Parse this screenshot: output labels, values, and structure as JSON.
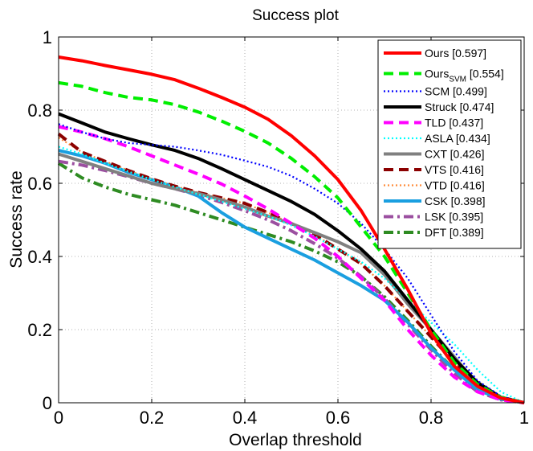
{
  "chart_data": {
    "type": "line",
    "title": "Success plot",
    "xlabel": "Overlap threshold",
    "ylabel": "Success rate",
    "xlim": [
      0,
      1
    ],
    "ylim": [
      0,
      1
    ],
    "grid": true,
    "legend_position": "top-right",
    "x_ticks": [
      "0",
      "0.2",
      "0.4",
      "0.6",
      "0.8",
      "1"
    ],
    "y_ticks": [
      "0",
      "0.2",
      "0.4",
      "0.6",
      "0.8",
      "1"
    ],
    "x": [
      0,
      0.05,
      0.1,
      0.15,
      0.2,
      0.25,
      0.3,
      0.35,
      0.4,
      0.45,
      0.5,
      0.55,
      0.6,
      0.65,
      0.7,
      0.75,
      0.8,
      0.85,
      0.9,
      0.95,
      1.0
    ],
    "series": [
      {
        "name": "Ours",
        "subscript": "",
        "score": "[0.597]",
        "color": "#ff0000",
        "dash": "solid",
        "values": [
          0.945,
          0.935,
          0.922,
          0.91,
          0.898,
          0.883,
          0.86,
          0.835,
          0.808,
          0.775,
          0.73,
          0.675,
          0.61,
          0.525,
          0.42,
          0.31,
          0.19,
          0.1,
          0.045,
          0.013,
          0.0
        ]
      },
      {
        "name": "Ours",
        "subscript": "SVM",
        "score": "[0.554]",
        "color": "#00ee00",
        "dash": "dash",
        "values": [
          0.875,
          0.865,
          0.848,
          0.835,
          0.828,
          0.815,
          0.795,
          0.77,
          0.742,
          0.71,
          0.668,
          0.618,
          0.56,
          0.48,
          0.4,
          0.3,
          0.2,
          0.11,
          0.05,
          0.015,
          0.0
        ]
      },
      {
        "name": "SCM",
        "subscript": "",
        "score": "[0.499]",
        "color": "#0000ff",
        "dash": "dot",
        "values": [
          0.762,
          0.74,
          0.722,
          0.71,
          0.705,
          0.7,
          0.69,
          0.678,
          0.662,
          0.645,
          0.62,
          0.585,
          0.545,
          0.49,
          0.42,
          0.34,
          0.24,
          0.14,
          0.06,
          0.018,
          0.0
        ]
      },
      {
        "name": "Struck",
        "subscript": "",
        "score": "[0.474]",
        "color": "#000000",
        "dash": "solid",
        "values": [
          0.79,
          0.765,
          0.74,
          0.722,
          0.705,
          0.69,
          0.668,
          0.64,
          0.61,
          0.58,
          0.55,
          0.515,
          0.47,
          0.42,
          0.36,
          0.28,
          0.2,
          0.12,
          0.055,
          0.015,
          0.0
        ]
      },
      {
        "name": "TLD",
        "subscript": "",
        "score": "[0.437]",
        "color": "#ff00ff",
        "dash": "dash",
        "values": [
          0.755,
          0.74,
          0.722,
          0.7,
          0.675,
          0.65,
          0.625,
          0.598,
          0.565,
          0.53,
          0.49,
          0.45,
          0.4,
          0.34,
          0.28,
          0.2,
          0.13,
          0.07,
          0.03,
          0.008,
          0.0
        ]
      },
      {
        "name": "ASLA",
        "subscript": "",
        "score": "[0.434]",
        "color": "#00ffff",
        "dash": "dot",
        "values": [
          0.7,
          0.68,
          0.655,
          0.632,
          0.61,
          0.59,
          0.57,
          0.55,
          0.53,
          0.51,
          0.485,
          0.455,
          0.42,
          0.385,
          0.34,
          0.28,
          0.22,
          0.16,
          0.09,
          0.03,
          0.0
        ]
      },
      {
        "name": "CXT",
        "subscript": "",
        "score": "[0.426]",
        "color": "#808080",
        "dash": "solid",
        "values": [
          0.68,
          0.66,
          0.64,
          0.62,
          0.6,
          0.585,
          0.572,
          0.555,
          0.535,
          0.51,
          0.49,
          0.465,
          0.44,
          0.41,
          0.35,
          0.27,
          0.2,
          0.125,
          0.05,
          0.015,
          0.0
        ]
      },
      {
        "name": "VTS",
        "subscript": "",
        "score": "[0.416]",
        "color": "#8b0000",
        "dash": "dash",
        "values": [
          0.735,
          0.685,
          0.66,
          0.635,
          0.612,
          0.592,
          0.575,
          0.56,
          0.545,
          0.52,
          0.49,
          0.46,
          0.42,
          0.38,
          0.32,
          0.25,
          0.18,
          0.11,
          0.05,
          0.015,
          0.0
        ]
      },
      {
        "name": "VTD",
        "subscript": "",
        "score": "[0.416]",
        "color": "#ff8c3a",
        "dash": "dot",
        "values": [
          0.725,
          0.685,
          0.66,
          0.635,
          0.612,
          0.592,
          0.575,
          0.56,
          0.545,
          0.52,
          0.49,
          0.46,
          0.42,
          0.38,
          0.32,
          0.25,
          0.18,
          0.11,
          0.05,
          0.015,
          0.0
        ]
      },
      {
        "name": "CSK",
        "subscript": "",
        "score": "[0.398]",
        "color": "#1a9fe0",
        "dash": "solid",
        "values": [
          0.69,
          0.675,
          0.655,
          0.63,
          0.61,
          0.59,
          0.565,
          0.52,
          0.48,
          0.45,
          0.42,
          0.39,
          0.355,
          0.32,
          0.28,
          0.22,
          0.15,
          0.09,
          0.035,
          0.01,
          0.0
        ]
      },
      {
        "name": "LSK",
        "subscript": "",
        "score": "[0.395]",
        "color": "#9b4fa0",
        "dash": "dashdot",
        "values": [
          0.66,
          0.65,
          0.635,
          0.618,
          0.6,
          0.585,
          0.568,
          0.548,
          0.525,
          0.5,
          0.47,
          0.435,
          0.395,
          0.345,
          0.285,
          0.215,
          0.145,
          0.08,
          0.03,
          0.008,
          0.0
        ]
      },
      {
        "name": "DFT",
        "subscript": "",
        "score": "[0.389]",
        "color": "#2e8b22",
        "dash": "dashdot",
        "values": [
          0.655,
          0.615,
          0.59,
          0.57,
          0.555,
          0.54,
          0.52,
          0.5,
          0.48,
          0.46,
          0.44,
          0.415,
          0.385,
          0.345,
          0.29,
          0.225,
          0.155,
          0.09,
          0.04,
          0.01,
          0.0
        ]
      }
    ]
  }
}
